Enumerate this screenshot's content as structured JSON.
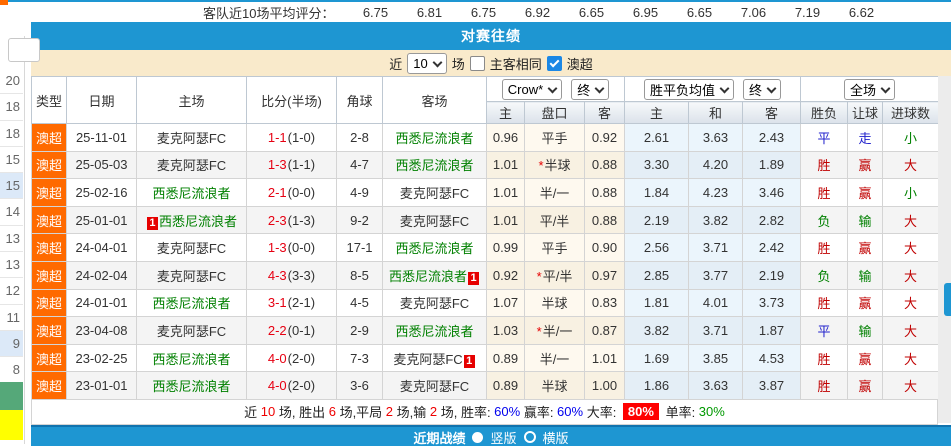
{
  "top": {
    "label": "客队近10场平均评分：",
    "scores": [
      "6.75",
      "6.81",
      "6.75",
      "6.92",
      "6.65",
      "6.95",
      "6.65",
      "7.06",
      "7.19",
      "6.62"
    ]
  },
  "sidebar": {
    "items": [
      {
        "value": "20",
        "highlighted": false
      },
      {
        "value": "18",
        "highlighted": false
      },
      {
        "value": "18",
        "highlighted": false
      },
      {
        "value": "15",
        "highlighted": false
      },
      {
        "value": "15",
        "highlighted": true
      },
      {
        "value": "14",
        "highlighted": false
      },
      {
        "value": "13",
        "highlighted": false
      },
      {
        "value": "13",
        "highlighted": false
      },
      {
        "value": "12",
        "highlighted": false
      },
      {
        "value": "11",
        "highlighted": false
      },
      {
        "value": "9",
        "highlighted": true
      },
      {
        "value": "8",
        "highlighted": false
      }
    ]
  },
  "section": {
    "title": "对赛往绩"
  },
  "filter": {
    "near_label": "近",
    "count_value": "10",
    "games_label": "场",
    "same_venue_label": "主客相同",
    "same_venue_checked": false,
    "league_label": "澳超",
    "league_checked": true
  },
  "table": {
    "selects": {
      "company": "Crow*",
      "final_asia": "终",
      "europe": "胜平负均值",
      "final_euro": "终",
      "full_match": "全场"
    },
    "headers": {
      "type": "类型",
      "date": "日期",
      "home": "主场",
      "score": "比分(半场)",
      "corner": "角球",
      "away": "客场",
      "asia_home": "主",
      "handicap": "盘口",
      "asia_away": "客",
      "euro_home": "主",
      "euro_draw": "和",
      "euro_away": "客",
      "result": "胜负",
      "handicap_result": "让球",
      "goals": "进球数"
    },
    "rows": [
      {
        "league": "澳超",
        "date": "25-11-01",
        "home": "麦克阿瑟FC",
        "home_color": "black",
        "home_card": "",
        "score": "1-1",
        "half": "(1-0)",
        "corner": "2-8",
        "away": "西悉尼流浪者",
        "away_color": "green",
        "away_card": "",
        "asia_home": "0.96",
        "handicap": "平手",
        "handicap_star": false,
        "asia_away": "0.92",
        "euro_home": "2.61",
        "euro_draw": "3.63",
        "euro_away": "2.43",
        "result": "平",
        "result_color": "blue",
        "handicap_result": "走",
        "handicap_result_color": "blue",
        "goals": "小",
        "goals_color": "green"
      },
      {
        "league": "澳超",
        "date": "25-05-03",
        "home": "麦克阿瑟FC",
        "home_color": "black",
        "home_card": "",
        "score": "1-3",
        "half": "(1-1)",
        "corner": "4-7",
        "away": "西悉尼流浪者",
        "away_color": "green",
        "away_card": "",
        "asia_home": "1.01",
        "handicap": "半球",
        "handicap_star": true,
        "asia_away": "0.88",
        "euro_home": "3.30",
        "euro_draw": "4.20",
        "euro_away": "1.89",
        "result": "胜",
        "result_color": "red",
        "handicap_result": "赢",
        "handicap_result_color": "red",
        "goals": "大",
        "goals_color": "red"
      },
      {
        "league": "澳超",
        "date": "25-02-16",
        "home": "西悉尼流浪者",
        "home_color": "green",
        "home_card": "",
        "score": "2-1",
        "half": "(0-0)",
        "corner": "4-9",
        "away": "麦克阿瑟FC",
        "away_color": "black",
        "away_card": "",
        "asia_home": "1.01",
        "handicap": "半/一",
        "handicap_star": false,
        "asia_away": "0.88",
        "euro_home": "1.84",
        "euro_draw": "4.23",
        "euro_away": "3.46",
        "result": "胜",
        "result_color": "red",
        "handicap_result": "赢",
        "handicap_result_color": "red",
        "goals": "小",
        "goals_color": "green"
      },
      {
        "league": "澳超",
        "date": "25-01-01",
        "home": "西悉尼流浪者",
        "home_color": "green",
        "home_card": "1",
        "score": "2-3",
        "half": "(1-3)",
        "corner": "9-2",
        "away": "麦克阿瑟FC",
        "away_color": "black",
        "away_card": "",
        "asia_home": "1.01",
        "handicap": "平/半",
        "handicap_star": false,
        "asia_away": "0.88",
        "euro_home": "2.19",
        "euro_draw": "3.82",
        "euro_away": "2.82",
        "result": "负",
        "result_color": "green",
        "handicap_result": "输",
        "handicap_result_color": "green",
        "goals": "大",
        "goals_color": "red"
      },
      {
        "league": "澳超",
        "date": "24-04-01",
        "home": "麦克阿瑟FC",
        "home_color": "black",
        "home_card": "",
        "score": "1-3",
        "half": "(0-0)",
        "corner": "17-1",
        "away": "西悉尼流浪者",
        "away_color": "green",
        "away_card": "",
        "asia_home": "0.99",
        "handicap": "平手",
        "handicap_star": false,
        "asia_away": "0.90",
        "euro_home": "2.56",
        "euro_draw": "3.71",
        "euro_away": "2.42",
        "result": "胜",
        "result_color": "red",
        "handicap_result": "赢",
        "handicap_result_color": "red",
        "goals": "大",
        "goals_color": "red"
      },
      {
        "league": "澳超",
        "date": "24-02-04",
        "home": "麦克阿瑟FC",
        "home_color": "black",
        "home_card": "",
        "score": "4-3",
        "half": "(3-3)",
        "corner": "8-5",
        "away": "西悉尼流浪者",
        "away_color": "green",
        "away_card": "1",
        "asia_home": "0.92",
        "handicap": "平/半",
        "handicap_star": true,
        "asia_away": "0.97",
        "euro_home": "2.85",
        "euro_draw": "3.77",
        "euro_away": "2.19",
        "result": "负",
        "result_color": "green",
        "handicap_result": "输",
        "handicap_result_color": "green",
        "goals": "大",
        "goals_color": "red"
      },
      {
        "league": "澳超",
        "date": "24-01-01",
        "home": "西悉尼流浪者",
        "home_color": "green",
        "home_card": "",
        "score": "3-1",
        "half": "(2-1)",
        "corner": "4-5",
        "away": "麦克阿瑟FC",
        "away_color": "black",
        "away_card": "",
        "asia_home": "1.07",
        "handicap": "半球",
        "handicap_star": false,
        "asia_away": "0.83",
        "euro_home": "1.81",
        "euro_draw": "4.01",
        "euro_away": "3.73",
        "result": "胜",
        "result_color": "red",
        "handicap_result": "赢",
        "handicap_result_color": "red",
        "goals": "大",
        "goals_color": "red"
      },
      {
        "league": "澳超",
        "date": "23-04-08",
        "home": "麦克阿瑟FC",
        "home_color": "black",
        "home_card": "",
        "score": "2-2",
        "half": "(0-1)",
        "corner": "2-9",
        "away": "西悉尼流浪者",
        "away_color": "green",
        "away_card": "",
        "asia_home": "1.03",
        "handicap": "半/一",
        "handicap_star": true,
        "asia_away": "0.87",
        "euro_home": "3.82",
        "euro_draw": "3.71",
        "euro_away": "1.87",
        "result": "平",
        "result_color": "blue",
        "handicap_result": "输",
        "handicap_result_color": "green",
        "goals": "大",
        "goals_color": "red"
      },
      {
        "league": "澳超",
        "date": "23-02-25",
        "home": "西悉尼流浪者",
        "home_color": "green",
        "home_card": "",
        "score": "4-0",
        "half": "(2-0)",
        "corner": "7-3",
        "away": "麦克阿瑟FC",
        "away_color": "black",
        "away_card": "1",
        "asia_home": "0.89",
        "handicap": "半/一",
        "handicap_star": false,
        "asia_away": "1.01",
        "euro_home": "1.69",
        "euro_draw": "3.85",
        "euro_away": "4.53",
        "result": "胜",
        "result_color": "red",
        "handicap_result": "赢",
        "handicap_result_color": "red",
        "goals": "大",
        "goals_color": "red"
      },
      {
        "league": "澳超",
        "date": "23-01-01",
        "home": "西悉尼流浪者",
        "home_color": "green",
        "home_card": "",
        "score": "4-0",
        "half": "(2-0)",
        "corner": "3-6",
        "away": "麦克阿瑟FC",
        "away_color": "black",
        "away_card": "",
        "asia_home": "0.89",
        "handicap": "半球",
        "handicap_star": false,
        "asia_away": "1.00",
        "euro_home": "1.86",
        "euro_draw": "3.63",
        "euro_away": "3.87",
        "result": "胜",
        "result_color": "red",
        "handicap_result": "赢",
        "handicap_result_color": "red",
        "goals": "大",
        "goals_color": "red"
      }
    ]
  },
  "summary": {
    "segments": [
      {
        "t": "近 ",
        "c": "black"
      },
      {
        "t": "10",
        "c": "red"
      },
      {
        "t": " 场, 胜出 ",
        "c": "black"
      },
      {
        "t": "6",
        "c": "red"
      },
      {
        "t": " 场,平局 ",
        "c": "black"
      },
      {
        "t": "2",
        "c": "red"
      },
      {
        "t": " 场,输 ",
        "c": "black"
      },
      {
        "t": "2",
        "c": "red"
      },
      {
        "t": " 场, 胜率: ",
        "c": "black"
      },
      {
        "t": "60%",
        "c": "blue"
      },
      {
        "t": " 赢率: ",
        "c": "black"
      },
      {
        "t": "60%",
        "c": "blue"
      },
      {
        "t": " 大率: ",
        "c": "black"
      },
      {
        "t": "80%",
        "c": "redbadge"
      },
      {
        "t": " 单率: ",
        "c": "black"
      },
      {
        "t": "30%",
        "c": "green"
      }
    ]
  },
  "footer": {
    "title": "近期战绩",
    "options": [
      {
        "label": "竖版",
        "selected": true
      },
      {
        "label": "横版",
        "selected": false
      }
    ]
  }
}
